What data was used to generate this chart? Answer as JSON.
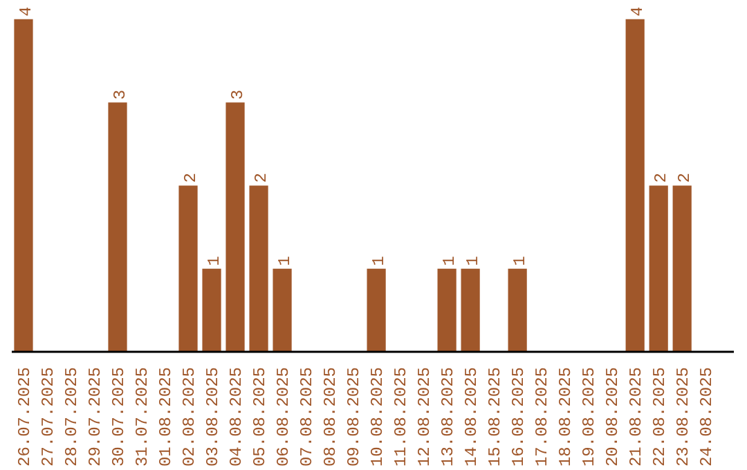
{
  "chart_data": {
    "type": "bar",
    "categories": [
      "26.07.2025",
      "27.07.2025",
      "28.07.2025",
      "29.07.2025",
      "30.07.2025",
      "31.07.2025",
      "01.08.2025",
      "02.08.2025",
      "03.08.2025",
      "04.08.2025",
      "05.08.2025",
      "06.08.2025",
      "07.08.2025",
      "08.08.2025",
      "09.08.2025",
      "10.08.2025",
      "11.08.2025",
      "12.08.2025",
      "13.08.2025",
      "14.08.2025",
      "15.08.2025",
      "16.08.2025",
      "17.08.2025",
      "18.08.2025",
      "19.08.2025",
      "20.08.2025",
      "21.08.2025",
      "22.08.2025",
      "23.08.2025",
      "24.08.2025"
    ],
    "values": [
      4,
      0,
      0,
      0,
      3,
      0,
      0,
      2,
      1,
      3,
      2,
      1,
      0,
      0,
      0,
      1,
      0,
      0,
      1,
      1,
      0,
      1,
      0,
      0,
      0,
      0,
      4,
      2,
      2,
      0
    ],
    "value_labels": [
      "4",
      null,
      null,
      null,
      "3",
      null,
      null,
      "2",
      "1",
      "3",
      "2",
      "1",
      null,
      null,
      null,
      "1",
      null,
      null,
      "1",
      "1",
      null,
      "1",
      null,
      null,
      null,
      null,
      "4",
      "2",
      "2",
      null
    ],
    "color": "#a0572a",
    "grid": false
  }
}
